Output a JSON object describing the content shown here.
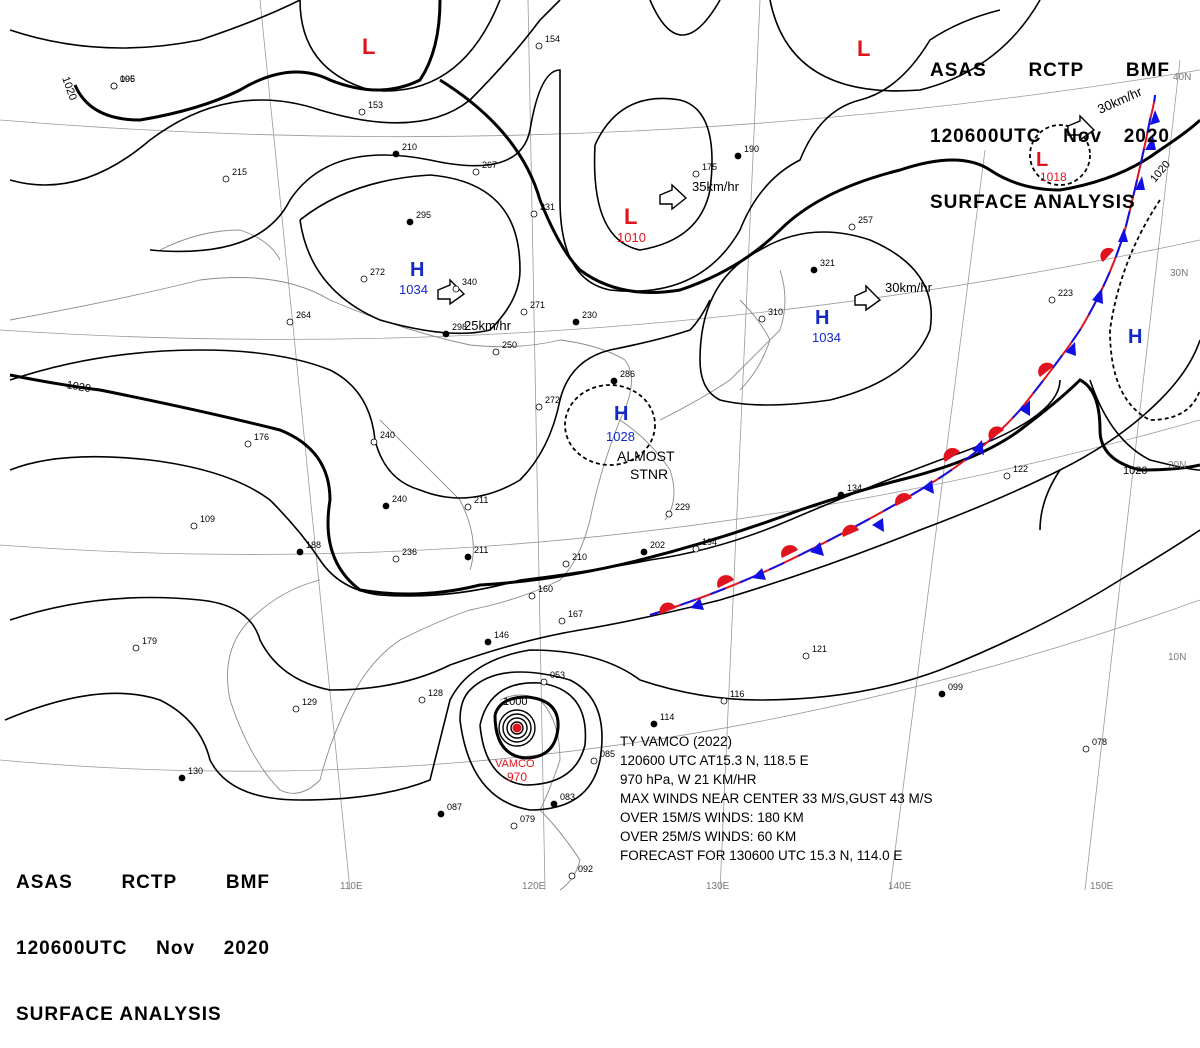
{
  "header": {
    "line1": [
      "ASAS",
      "RCTP",
      "BMF"
    ],
    "line2": [
      "120600UTC",
      "Nov",
      "2020"
    ],
    "line3": "SURFACE ANALYSIS"
  },
  "pressure_systems": [
    {
      "type": "L",
      "value": ""
    },
    {
      "type": "L",
      "value": ""
    },
    {
      "type": "L",
      "value": "1010",
      "motion": "35km/hr"
    },
    {
      "type": "L",
      "value": "1018",
      "motion": "30km/hr"
    },
    {
      "type": "H",
      "value": "1034",
      "motion": "25km/hr"
    },
    {
      "type": "H",
      "value": "1034",
      "motion": "30km/hr"
    },
    {
      "type": "H",
      "value": "1028",
      "note": [
        "ALMOST",
        "STNR"
      ]
    },
    {
      "type": "H",
      "value": ""
    }
  ],
  "isobar_labels": [
    "1020",
    "1020",
    "1020",
    "1020",
    "1000"
  ],
  "grid_labels": {
    "longitudes": [
      "110E",
      "120E",
      "130E",
      "140E",
      "150E"
    ],
    "latitudes": [
      "40N",
      "30N",
      "20N",
      "10N"
    ]
  },
  "typhoon": {
    "name": "VAMCO",
    "pressure": "970",
    "info_lines": [
      "TY  VAMCO  (2022)",
      "120600 UTC  AT15.3 N, 118.5 E",
      "970 hPa, W  21 KM/HR",
      "MAX WINDS NEAR CENTER 33 M/S,GUST 43 M/S",
      "OVER 15M/S WINDS: 180 KM",
      "OVER 25M/S WINDS: 60 KM",
      "FORECAST FOR 130600 UTC 15.3 N, 114.0 E"
    ]
  },
  "station_values": [
    "096",
    "153",
    "154",
    "210",
    "215",
    "267",
    "295",
    "272",
    "340",
    "298",
    "250",
    "231",
    "230",
    "264",
    "271",
    "190",
    "175",
    "257",
    "321",
    "310",
    "223",
    "286",
    "272",
    "240",
    "240",
    "236",
    "229",
    "202",
    "194",
    "210",
    "211",
    "211",
    "176",
    "188",
    "160",
    "167",
    "146",
    "128",
    "129",
    "087",
    "053",
    "085",
    "083",
    "079",
    "092",
    "114",
    "116",
    "121",
    "099",
    "078",
    "122",
    "134",
    "109",
    "179",
    "130",
    "105"
  ],
  "colors": {
    "low": "#e0141e",
    "high": "#1428c8",
    "front_cold": "#1010e6",
    "front_warm": "#e0141e",
    "isobar": "#000000",
    "grid": "#9a9a9a",
    "coast": "#8a8a8a"
  }
}
